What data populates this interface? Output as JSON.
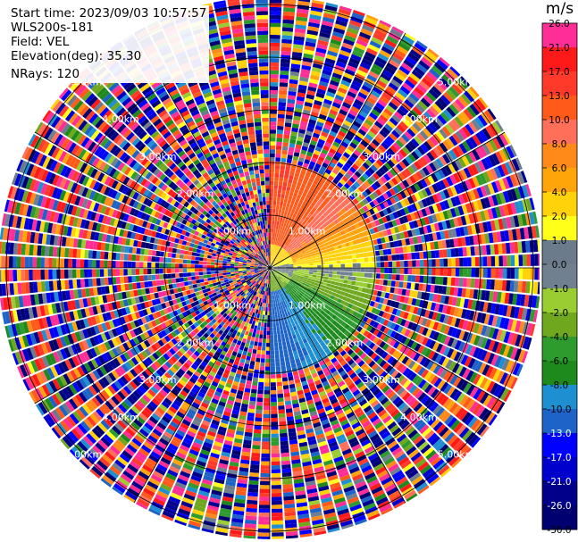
{
  "header": {
    "start_time": "Start time: 2023/09/03 10:57:57",
    "instrument": "WLS200s-181",
    "field": "Field: VEL",
    "elevation": "Elevation(deg): 35.30",
    "nrays": "NRays: 120"
  },
  "colorbar": {
    "unit": "m/s",
    "ticks": [
      "26.0",
      "21.0",
      "17.0",
      "13.0",
      "10.0",
      "8.0",
      "6.0",
      "4.0",
      "2.0",
      "1.0",
      "0.0",
      "-1.0",
      "-2.0",
      "-4.0",
      "-6.0",
      "-8.0",
      "-10.0",
      "-13.0",
      "-17.0",
      "-21.0",
      "-26.0",
      "-30.0"
    ],
    "segments": [
      {
        "color": "#ff2d96",
        "label_color": "#000000"
      },
      {
        "color": "#ff1a1a",
        "label_color": "#000000"
      },
      {
        "color": "#ff3a2a",
        "label_color": "#000000"
      },
      {
        "color": "#ff5a1a",
        "label_color": "#000000"
      },
      {
        "color": "#ff6f5a",
        "label_color": "#000000"
      },
      {
        "color": "#ff8a1a",
        "label_color": "#000000"
      },
      {
        "color": "#ffa50a",
        "label_color": "#000000"
      },
      {
        "color": "#ffd20a",
        "label_color": "#000000"
      },
      {
        "color": "#ffff1a",
        "label_color": "#000000"
      },
      {
        "color": "#6b7b8c",
        "label_color": "#000000"
      },
      {
        "color": "#70808f",
        "label_color": "#000000"
      },
      {
        "color": "#9acd32",
        "label_color": "#000000"
      },
      {
        "color": "#6fa81f",
        "label_color": "#000000"
      },
      {
        "color": "#2e9b2e",
        "label_color": "#000000"
      },
      {
        "color": "#1e8a1e",
        "label_color": "#000000"
      },
      {
        "color": "#1e90d2",
        "label_color": "#000000"
      },
      {
        "color": "#1e64c8",
        "label_color": "#000000"
      },
      {
        "color": "#0000ff",
        "label_color": "#ffffff"
      },
      {
        "color": "#0000cd",
        "label_color": "#ffffff"
      },
      {
        "color": "#00008b",
        "label_color": "#ffffff"
      },
      {
        "color": "#000070",
        "label_color": "#ffffff"
      }
    ]
  },
  "chart_data": {
    "type": "heatmap",
    "plot_kind": "PPI velocity scan",
    "field": "VEL",
    "nrays": 120,
    "range_rings_km": [
      1.0,
      2.0,
      3.0,
      4.0,
      5.0
    ],
    "range_labels": [
      "1.00km",
      "2.00km",
      "3.00km",
      "4.00km",
      "5.00km"
    ],
    "grid": true,
    "clean_sector": {
      "max_range_km": 2.0,
      "azimuth_from_deg": 0,
      "azimuth_to_deg": 180,
      "note": "coherent velocity pattern in the eastern half; noise elsewhere"
    },
    "velocity_by_azimuth_deg": [
      {
        "az": 10,
        "v": 13.0
      },
      {
        "az": 30,
        "v": 11.0
      },
      {
        "az": 50,
        "v": 9.0
      },
      {
        "az": 70,
        "v": 5.0
      },
      {
        "az": 85,
        "v": 2.0
      },
      {
        "az": 95,
        "v": -1.0
      },
      {
        "az": 110,
        "v": -3.0
      },
      {
        "az": 130,
        "v": -6.0
      },
      {
        "az": 150,
        "v": -9.0
      },
      {
        "az": 170,
        "v": -11.0
      }
    ],
    "value_range": [
      -30.0,
      26.0
    ]
  }
}
